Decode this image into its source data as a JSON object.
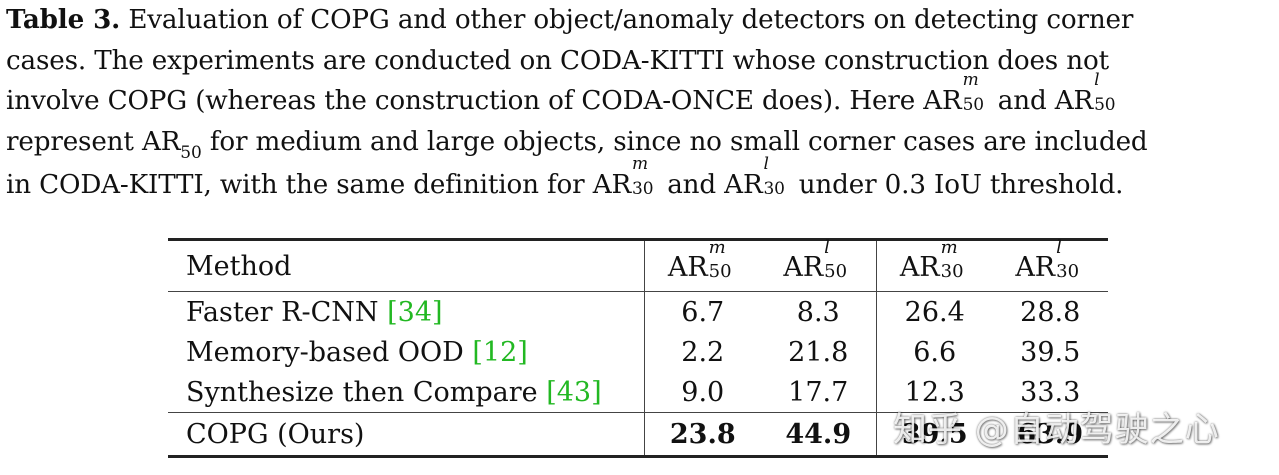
{
  "caption": {
    "label": "Table 3.",
    "line1": "Evaluation of COPG and other object/anomaly detectors on detecting corner",
    "line2": "cases. The experiments are conducted on CODA-KITTI whose construction does not",
    "line3_a": "involve COPG (whereas the construction of CODA-ONCE does). Here AR",
    "line3_b": "and AR",
    "line4_a": "represent AR",
    "line4_b": "for medium and large objects, since no small corner cases are included",
    "line5_a": "in CODA-KITTI, with the same definition for AR",
    "line5_b": "and AR",
    "line5_c": "under 0.3 IoU threshold.",
    "sup_m": "m",
    "sup_l": "l",
    "sub_50": "50",
    "sub_30": "30"
  },
  "table": {
    "header": {
      "method": "Method",
      "ar": "AR",
      "cols": [
        {
          "sup": "m",
          "sub": "50"
        },
        {
          "sup": "l",
          "sub": "50"
        },
        {
          "sup": "m",
          "sub": "30"
        },
        {
          "sup": "l",
          "sub": "30"
        }
      ]
    },
    "rows": [
      {
        "method": "Faster R-CNN",
        "cite": "[34]",
        "values": [
          "6.7",
          "8.3",
          "26.4",
          "28.8"
        ]
      },
      {
        "method": "Memory-based OOD",
        "cite": "[12]",
        "values": [
          "2.2",
          "21.8",
          "6.6",
          "39.5"
        ]
      },
      {
        "method": "Synthesize then Compare",
        "cite": "[43]",
        "values": [
          "9.0",
          "17.7",
          "12.3",
          "33.3"
        ]
      },
      {
        "method": "COPG (Ours)",
        "cite": "",
        "values": [
          "23.8",
          "44.9",
          "39.5",
          "63.9"
        ]
      }
    ]
  },
  "colors": {
    "citation": "#22b822",
    "text": "#111111"
  },
  "watermark": "知乎 @自动驾驶之心"
}
